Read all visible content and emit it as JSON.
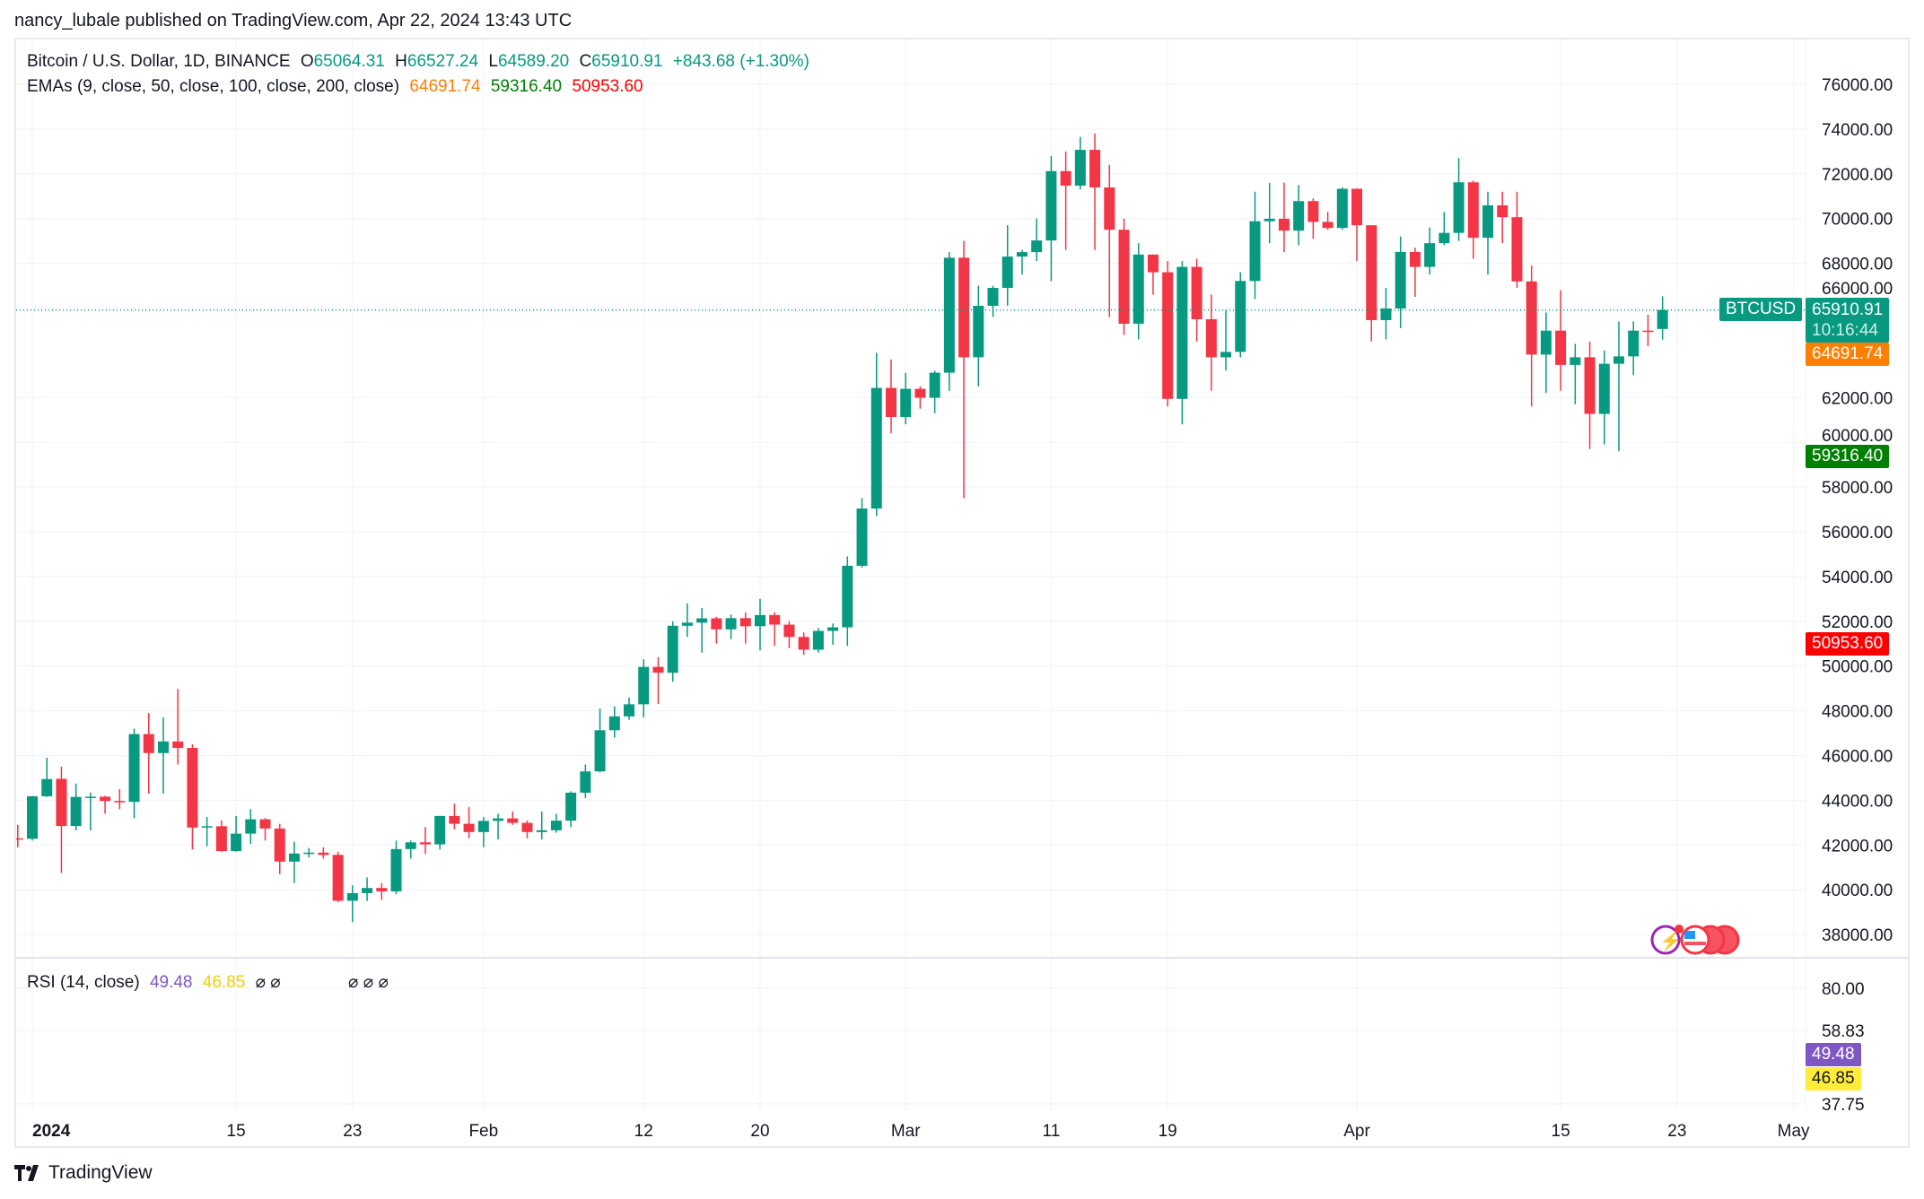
{
  "header": {
    "published": "nancy_lubale published on TradingView.com, Apr 22, 2024 13:43 UTC"
  },
  "legend": {
    "symbol": "Bitcoin / U.S. Dollar, 1D, BINANCE",
    "o_label": "O",
    "o": "65064.31",
    "h_label": "H",
    "h": "66527.24",
    "l_label": "L",
    "l": "64589.20",
    "c_label": "C",
    "c": "65910.91",
    "change": "+843.68 (+1.30%)",
    "ema_label": "EMAs (9, close, 50, close, 100, close, 200, close)",
    "ema9": "64691.74",
    "ema50": "59316.40",
    "ema100": "50953.60",
    "rsi_label": "RSI (14, close)",
    "rsi": "49.48",
    "rsi_ma": "46.85",
    "rsi_na": "⌀ ⌀",
    "rsi_na2": "⌀ ⌀ ⌀"
  },
  "badges": {
    "symbol": "BTCUSD",
    "price": "65910.91",
    "countdown": "10:16:44",
    "ema9": "64691.74",
    "ema50": "59316.40",
    "ema100": "50953.60",
    "rsi": "49.48",
    "rsi_ma": "46.85"
  },
  "footer": {
    "brand": "TradingView"
  },
  "colors": {
    "up": "#089981",
    "down": "#f23645",
    "ema9": "#ff7f00",
    "ema50": "#008000",
    "ema100": "#ff0000",
    "rsi": "#7e57c2",
    "rsi_ma": "#ffeb3b"
  },
  "chart_data": {
    "type": "candlestick",
    "title": "Bitcoin / U.S. Dollar, 1D, BINANCE",
    "ylim": [
      37000,
      77000
    ],
    "y_ticks": [
      76000,
      74000,
      72000,
      70000,
      68000,
      66000,
      62000,
      60000,
      58000,
      56000,
      54000,
      52000,
      50000,
      48000,
      46000,
      44000,
      42000,
      40000,
      38000
    ],
    "y_tick_labels": [
      "76000.00",
      "74000.00",
      "72000.00",
      "70000.00",
      "68000.00",
      "66000.00",
      "62000.00",
      "60000.00",
      "58000.00",
      "56000.00",
      "54000.00",
      "52000.00",
      "50000.00",
      "48000.00",
      "46000.00",
      "44000.00",
      "42000.00",
      "40000.00",
      "38000.00"
    ],
    "x_ticks": [
      {
        "day": 0,
        "label": "2024"
      },
      {
        "day": 14,
        "label": "15"
      },
      {
        "day": 22,
        "label": "23"
      },
      {
        "day": 31,
        "label": "Feb"
      },
      {
        "day": 42,
        "label": "12"
      },
      {
        "day": 50,
        "label": "20"
      },
      {
        "day": 60,
        "label": "Mar"
      },
      {
        "day": 70,
        "label": "11"
      },
      {
        "day": 78,
        "label": "19"
      },
      {
        "day": 91,
        "label": "Apr"
      },
      {
        "day": 105,
        "label": "15"
      },
      {
        "day": 113,
        "label": "23"
      },
      {
        "day": 121,
        "label": "May"
      }
    ],
    "first_day": -1,
    "ohlc": [
      [
        42300,
        42900,
        41900,
        42280
      ],
      [
        42280,
        44200,
        42200,
        44180
      ],
      [
        44180,
        45900,
        44150,
        44950
      ],
      [
        44960,
        45500,
        40750,
        42850
      ],
      [
        42850,
        44750,
        42650,
        44150
      ],
      [
        44150,
        44350,
        42650,
        44160
      ],
      [
        44160,
        44200,
        43400,
        43970
      ],
      [
        43970,
        44500,
        43600,
        43930
      ],
      [
        43930,
        47200,
        43200,
        46960
      ],
      [
        46960,
        47900,
        44300,
        46110
      ],
      [
        46110,
        47700,
        44300,
        46630
      ],
      [
        46630,
        48970,
        45600,
        46340
      ],
      [
        46340,
        46500,
        41800,
        42780
      ],
      [
        42780,
        43250,
        41950,
        42840
      ],
      [
        42840,
        43100,
        41700,
        41730
      ],
      [
        41730,
        43300,
        41700,
        42510
      ],
      [
        42510,
        43600,
        42050,
        43150
      ],
      [
        43150,
        43200,
        42200,
        42740
      ],
      [
        42740,
        42950,
        40700,
        41260
      ],
      [
        41260,
        42150,
        40300,
        41620
      ],
      [
        41620,
        41870,
        41450,
        41660
      ],
      [
        41660,
        41900,
        41400,
        41560
      ],
      [
        41560,
        41700,
        39450,
        39510
      ],
      [
        39510,
        40200,
        38550,
        39850
      ],
      [
        39850,
        40550,
        39500,
        40080
      ],
      [
        40080,
        40300,
        39550,
        39930
      ],
      [
        39930,
        42200,
        39800,
        41820
      ],
      [
        41820,
        42200,
        41400,
        42120
      ],
      [
        42120,
        42800,
        41600,
        42030
      ],
      [
        42030,
        43300,
        41800,
        43300
      ],
      [
        43300,
        43850,
        42700,
        42950
      ],
      [
        42950,
        43700,
        42300,
        42580
      ],
      [
        42580,
        43250,
        41900,
        43080
      ],
      [
        43080,
        43400,
        42250,
        43190
      ],
      [
        43190,
        43500,
        42900,
        42990
      ],
      [
        42990,
        43100,
        42300,
        42580
      ],
      [
        42580,
        43500,
        42250,
        42660
      ],
      [
        42660,
        43400,
        42550,
        43090
      ],
      [
        43090,
        44400,
        42800,
        44340
      ],
      [
        44340,
        45600,
        44100,
        45290
      ],
      [
        45290,
        48100,
        45250,
        47130
      ],
      [
        47130,
        48200,
        46800,
        47750
      ],
      [
        47750,
        48600,
        47600,
        48290
      ],
      [
        48290,
        50300,
        47700,
        49960
      ],
      [
        49960,
        50400,
        48300,
        49700
      ],
      [
        49700,
        52000,
        49300,
        51800
      ],
      [
        51800,
        52800,
        51300,
        51940
      ],
      [
        51940,
        52600,
        50600,
        52130
      ],
      [
        52130,
        52200,
        51000,
        51640
      ],
      [
        51640,
        52300,
        51200,
        52140
      ],
      [
        52140,
        52400,
        51000,
        51780
      ],
      [
        51780,
        53000,
        50700,
        52280
      ],
      [
        52280,
        52400,
        50900,
        51850
      ],
      [
        51850,
        52000,
        50800,
        51300
      ],
      [
        51300,
        51500,
        50500,
        50730
      ],
      [
        50730,
        51700,
        50600,
        51570
      ],
      [
        51570,
        51900,
        50950,
        51730
      ],
      [
        51730,
        54900,
        50900,
        54480
      ],
      [
        54480,
        57500,
        54400,
        57040
      ],
      [
        57040,
        64000,
        56700,
        62430
      ],
      [
        62430,
        63700,
        60400,
        61130
      ],
      [
        61130,
        63100,
        60800,
        62390
      ],
      [
        62390,
        62500,
        61500,
        61990
      ],
      [
        61990,
        63200,
        61300,
        63110
      ],
      [
        63110,
        68500,
        62300,
        68250
      ],
      [
        68250,
        69000,
        57500,
        63800
      ],
      [
        63800,
        67000,
        62500,
        66100
      ],
      [
        66100,
        67000,
        65600,
        66900
      ],
      [
        66900,
        69700,
        66100,
        68300
      ],
      [
        68300,
        68600,
        67500,
        68500
      ],
      [
        68500,
        70000,
        68100,
        69020
      ],
      [
        69020,
        72800,
        67200,
        72120
      ],
      [
        72120,
        73000,
        68600,
        71470
      ],
      [
        71470,
        73650,
        71300,
        73070
      ],
      [
        73070,
        73800,
        68600,
        71390
      ],
      [
        71390,
        72400,
        65600,
        69500
      ],
      [
        69500,
        70000,
        64800,
        65300
      ],
      [
        65300,
        68900,
        64600,
        68390
      ],
      [
        68390,
        68400,
        66600,
        67600
      ],
      [
        67600,
        68100,
        61600,
        61940
      ],
      [
        61940,
        68100,
        60800,
        67840
      ],
      [
        67840,
        68200,
        64500,
        65500
      ],
      [
        65500,
        66600,
        62300,
        63800
      ],
      [
        63800,
        65900,
        63200,
        64040
      ],
      [
        64040,
        67600,
        63800,
        67210
      ],
      [
        67210,
        71200,
        66400,
        69880
      ],
      [
        69880,
        71600,
        68900,
        69990
      ],
      [
        69990,
        71600,
        68500,
        69460
      ],
      [
        69460,
        71500,
        68800,
        70780
      ],
      [
        70780,
        70900,
        69100,
        69850
      ],
      [
        69850,
        70300,
        69500,
        69580
      ],
      [
        69580,
        71400,
        69500,
        71330
      ],
      [
        71330,
        71350,
        68100,
        69700
      ],
      [
        69700,
        69700,
        64500,
        65460
      ],
      [
        65460,
        66900,
        64600,
        65980
      ],
      [
        65980,
        69200,
        65100,
        68510
      ],
      [
        68510,
        68700,
        66500,
        67840
      ],
      [
        67840,
        69600,
        67500,
        68900
      ],
      [
        68900,
        70300,
        68800,
        69360
      ],
      [
        69360,
        72700,
        69000,
        71620
      ],
      [
        71620,
        71700,
        68200,
        69140
      ],
      [
        69140,
        71200,
        67500,
        70590
      ],
      [
        70590,
        71200,
        68900,
        70060
      ],
      [
        70060,
        71200,
        66900,
        67190
      ],
      [
        67190,
        67900,
        61600,
        63920
      ],
      [
        63920,
        65800,
        62200,
        64990
      ],
      [
        64990,
        66800,
        62300,
        63460
      ],
      [
        63460,
        64400,
        61700,
        63800
      ],
      [
        63800,
        64500,
        59700,
        61270
      ],
      [
        61270,
        64100,
        59900,
        63510
      ],
      [
        63510,
        65400,
        59600,
        63840
      ],
      [
        63840,
        65400,
        63000,
        64990
      ],
      [
        64990,
        65700,
        64300,
        64940
      ],
      [
        65064,
        66527,
        64589,
        65910
      ]
    ],
    "rsi_axis": [
      "80.00",
      "58.83",
      "37.75"
    ],
    "last_price": 65910.91,
    "ema9": 64691.74,
    "ema50": 59316.4,
    "ema100": 50953.6,
    "rsi": 49.48,
    "rsi_ma": 46.85
  }
}
